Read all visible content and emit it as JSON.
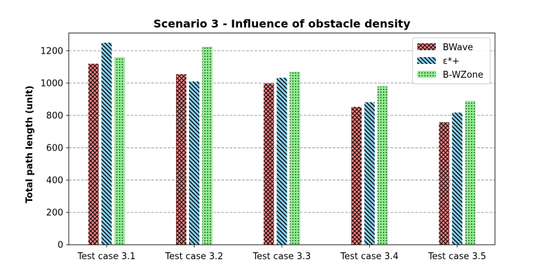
{
  "chart_data": {
    "type": "bar",
    "title": "Scenario 3 - Influence of obstacle density",
    "xlabel": "",
    "ylabel": "Total path length (unit)",
    "categories": [
      "Test case 3.1",
      "Test case 3.2",
      "Test case 3.3",
      "Test case 3.4",
      "Test case 3.5"
    ],
    "series": [
      {
        "name": "BWave",
        "values": [
          1120,
          1055,
          998,
          853,
          758
        ],
        "color": "#f08080",
        "hatch": "crosshatch"
      },
      {
        "name": "ε*+",
        "values": [
          1250,
          1010,
          1033,
          882,
          818
        ],
        "color": "#87ceeb",
        "hatch": "diagonal"
      },
      {
        "name": "B-WZone",
        "values": [
          1160,
          1225,
          1070,
          980,
          890
        ],
        "color": "#90ee90",
        "hatch": "dots"
      }
    ],
    "ylim": [
      0,
      1310
    ],
    "yticks": [
      0,
      200,
      400,
      600,
      800,
      1000,
      1200
    ],
    "grid": "y-dashed",
    "legend_position": "top-right"
  }
}
